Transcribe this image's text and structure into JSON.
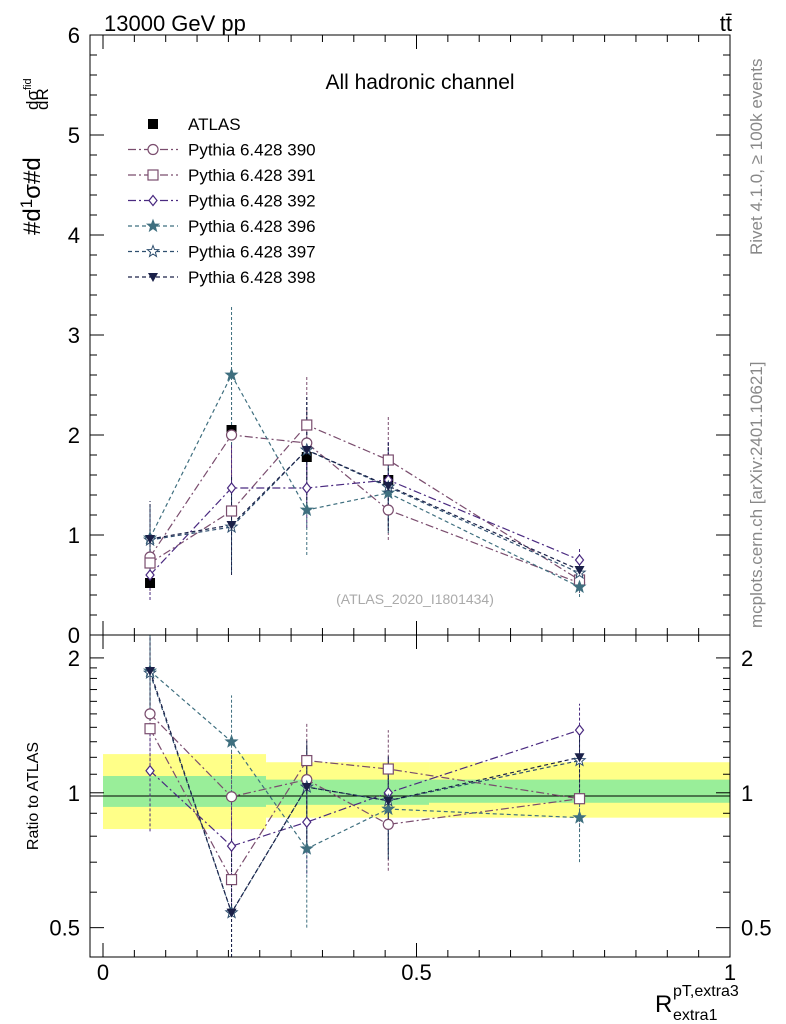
{
  "header": {
    "energy_label": "13000 GeV pp",
    "process_label": "tt̄",
    "side_label_top": "Rivet 4.1.0, ≥ 100k events",
    "side_label_bottom": "mcplots.cern.ch [arXiv:2401.10621]"
  },
  "chart_data": [
    {
      "type": "scatter",
      "panel": "main",
      "title": "All hadronic channel",
      "watermark": "(ATLAS_2020_I1801434)",
      "ylabel": "#d1/σ#dσ^fid/dR^pT,extra3_extra1",
      "xlabel": "R^pT,extra3_extra1",
      "xlim": [
        0,
        1
      ],
      "ylim": [
        0,
        6
      ],
      "yticks": [
        "0",
        "1",
        "2",
        "3",
        "4",
        "5",
        "6"
      ],
      "x": [
        0.075,
        0.205,
        0.325,
        0.455,
        0.76
      ],
      "x_bins": [
        [
          0,
          0.15
        ],
        [
          0.15,
          0.26
        ],
        [
          0.26,
          0.39
        ],
        [
          0.39,
          0.52
        ],
        [
          0.52,
          1.0
        ]
      ],
      "series": [
        {
          "name": "ATLAS",
          "color": "#000000",
          "marker": "filled-square",
          "values": [
            0.52,
            2.05,
            1.78,
            1.55,
            0.54
          ],
          "errors": [
            0.0,
            0.0,
            0.0,
            0.0,
            0.0
          ]
        },
        {
          "name": "Pythia 6.428 390",
          "color": "#7a4d6e",
          "marker": "open-circle",
          "dash": "8,3,2,3",
          "values": [
            0.78,
            2.0,
            1.92,
            1.25,
            0.52
          ],
          "errors": [
            0.3,
            0.55,
            0.35,
            0.3,
            0.1
          ]
        },
        {
          "name": "Pythia 6.428 391",
          "color": "#7a4d6e",
          "marker": "open-square",
          "dash": "8,3,2,3",
          "values": [
            0.72,
            1.24,
            2.1,
            1.75,
            0.55
          ],
          "errors": [
            0.28,
            0.4,
            0.5,
            0.45,
            0.12
          ]
        },
        {
          "name": "Pythia 6.428 392",
          "color": "#4a2a80",
          "marker": "open-diamond",
          "dash": "8,3,2,3",
          "values": [
            0.6,
            1.47,
            1.47,
            1.55,
            0.75
          ],
          "errors": [
            0.25,
            0.45,
            0.4,
            0.4,
            0.12
          ]
        },
        {
          "name": "Pythia 6.428 396",
          "color": "#3f6f7f",
          "marker": "filled-star",
          "dash": "4,3",
          "values": [
            0.97,
            2.6,
            1.25,
            1.42,
            0.48
          ],
          "errors": [
            0.35,
            0.7,
            0.45,
            0.4,
            0.1
          ]
        },
        {
          "name": "Pythia 6.428 397",
          "color": "#2f4f6f",
          "marker": "open-star",
          "dash": "4,3",
          "values": [
            0.95,
            1.08,
            1.85,
            1.48,
            0.62
          ],
          "errors": [
            0.35,
            0.45,
            0.5,
            0.4,
            0.12
          ]
        },
        {
          "name": "Pythia 6.428 398",
          "color": "#1a2048",
          "marker": "filled-triangle-down",
          "dash": "4,3",
          "values": [
            0.96,
            1.1,
            1.85,
            1.49,
            0.65
          ],
          "errors": [
            0.38,
            0.5,
            0.55,
            0.45,
            0.13
          ]
        }
      ]
    },
    {
      "type": "scatter",
      "panel": "ratio",
      "ylabel": "Ratio to ATLAS",
      "xlabel": "R^pT,extra3_extra1",
      "xlim": [
        0,
        1
      ],
      "ylim": [
        0.43,
        2.25
      ],
      "yticks": [
        "0.5",
        "1",
        "2"
      ],
      "xticks": [
        "0",
        "0.5",
        "1"
      ],
      "bands": {
        "x_bins": [
          [
            0,
            0.26
          ],
          [
            0.26,
            0.52
          ],
          [
            0.52,
            1.0
          ]
        ],
        "inner": [
          [
            0.93,
            1.09
          ],
          [
            0.94,
            1.07
          ],
          [
            0.95,
            1.07
          ]
        ],
        "outer": [
          [
            0.83,
            1.22
          ],
          [
            0.88,
            1.17
          ],
          [
            0.88,
            1.17
          ]
        ],
        "inner_color": "#99ee99",
        "outer_color": "#ffff88"
      },
      "series": [
        {
          "name": "Pythia 6.428 390",
          "values": [
            1.5,
            0.98,
            1.07,
            0.85,
            0.97
          ],
          "errors": [
            0.35,
            0.25,
            0.2,
            0.18,
            0.15
          ]
        },
        {
          "name": "Pythia 6.428 391",
          "values": [
            1.39,
            0.64,
            1.18,
            1.13,
            0.97
          ],
          "errors": [
            0.3,
            0.22,
            0.25,
            0.25,
            0.15
          ]
        },
        {
          "name": "Pythia 6.428 392",
          "values": [
            1.12,
            0.76,
            0.86,
            1.0,
            1.38
          ],
          "errors": [
            0.3,
            0.2,
            0.2,
            0.2,
            0.2
          ]
        },
        {
          "name": "Pythia 6.428 396",
          "values": [
            1.87,
            1.3,
            0.75,
            0.92,
            0.88
          ],
          "errors": [
            0.4,
            0.35,
            0.25,
            0.2,
            0.18
          ]
        },
        {
          "name": "Pythia 6.428 397",
          "values": [
            1.85,
            0.54,
            1.03,
            0.96,
            1.18
          ],
          "errors": [
            0.4,
            0.22,
            0.25,
            0.22,
            0.2
          ]
        },
        {
          "name": "Pythia 6.428 398",
          "values": [
            1.87,
            0.54,
            1.03,
            0.96,
            1.2
          ],
          "errors": [
            0.42,
            0.25,
            0.28,
            0.25,
            0.2
          ]
        }
      ]
    }
  ]
}
